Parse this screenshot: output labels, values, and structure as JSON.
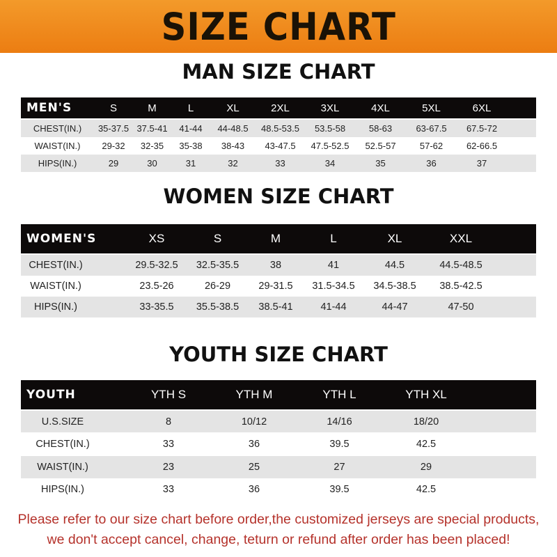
{
  "banner": "SIZE CHART",
  "tables": [
    {
      "title": "MAN SIZE CHART",
      "header": [
        "MEN'S",
        "S",
        "M",
        "L",
        "XL",
        "2XL",
        "3XL",
        "4XL",
        "5XL",
        "6XL"
      ],
      "rows": [
        [
          "CHEST(IN.)",
          "35-37.5",
          "37.5-41",
          "41-44",
          "44-48.5",
          "48.5-53.5",
          "53.5-58",
          "58-63",
          "63-67.5",
          "67.5-72"
        ],
        [
          "WAIST(IN.)",
          "29-32",
          "32-35",
          "35-38",
          "38-43",
          "43-47.5",
          "47.5-52.5",
          "52.5-57",
          "57-62",
          "62-66.5"
        ],
        [
          "HIPS(IN.)",
          "29",
          "30",
          "31",
          "32",
          "33",
          "34",
          "35",
          "36",
          "37"
        ]
      ]
    },
    {
      "title": "WOMEN SIZE CHART",
      "header": [
        "WOMEN'S",
        "XS",
        "S",
        "M",
        "L",
        "XL",
        "XXL"
      ],
      "rows": [
        [
          "CHEST(IN.)",
          "29.5-32.5",
          "32.5-35.5",
          "38",
          "41",
          "44.5",
          "44.5-48.5"
        ],
        [
          "WAIST(IN.)",
          "23.5-26",
          "26-29",
          "29-31.5",
          "31.5-34.5",
          "34.5-38.5",
          "38.5-42.5"
        ],
        [
          "HIPS(IN.)",
          "33-35.5",
          "35.5-38.5",
          "38.5-41",
          "41-44",
          "44-47",
          "47-50"
        ]
      ]
    },
    {
      "title": "YOUTH SIZE CHART",
      "header": [
        "YOUTH",
        "YTH S",
        "YTH M",
        "YTH L",
        "YTH XL"
      ],
      "rows": [
        [
          "U.S.SIZE",
          "8",
          "10/12",
          "14/16",
          "18/20"
        ],
        [
          "CHEST(IN.)",
          "33",
          "36",
          "39.5",
          "42.5"
        ],
        [
          "WAIST(IN.)",
          "23",
          "25",
          "27",
          "29"
        ],
        [
          "HIPS(IN.)",
          "33",
          "36",
          "39.5",
          "42.5"
        ]
      ]
    }
  ],
  "notice": [
    "Please refer to our size chart before order,the customized jerseys are special products,",
    "we don't accept cancel, change, teturn or refund after order has been placed!"
  ],
  "colors": {
    "banner": "#ef8a1c",
    "header_row": "#0d0a0a",
    "shaded_row": "#e4e4e4",
    "notice": "#b5322b"
  }
}
